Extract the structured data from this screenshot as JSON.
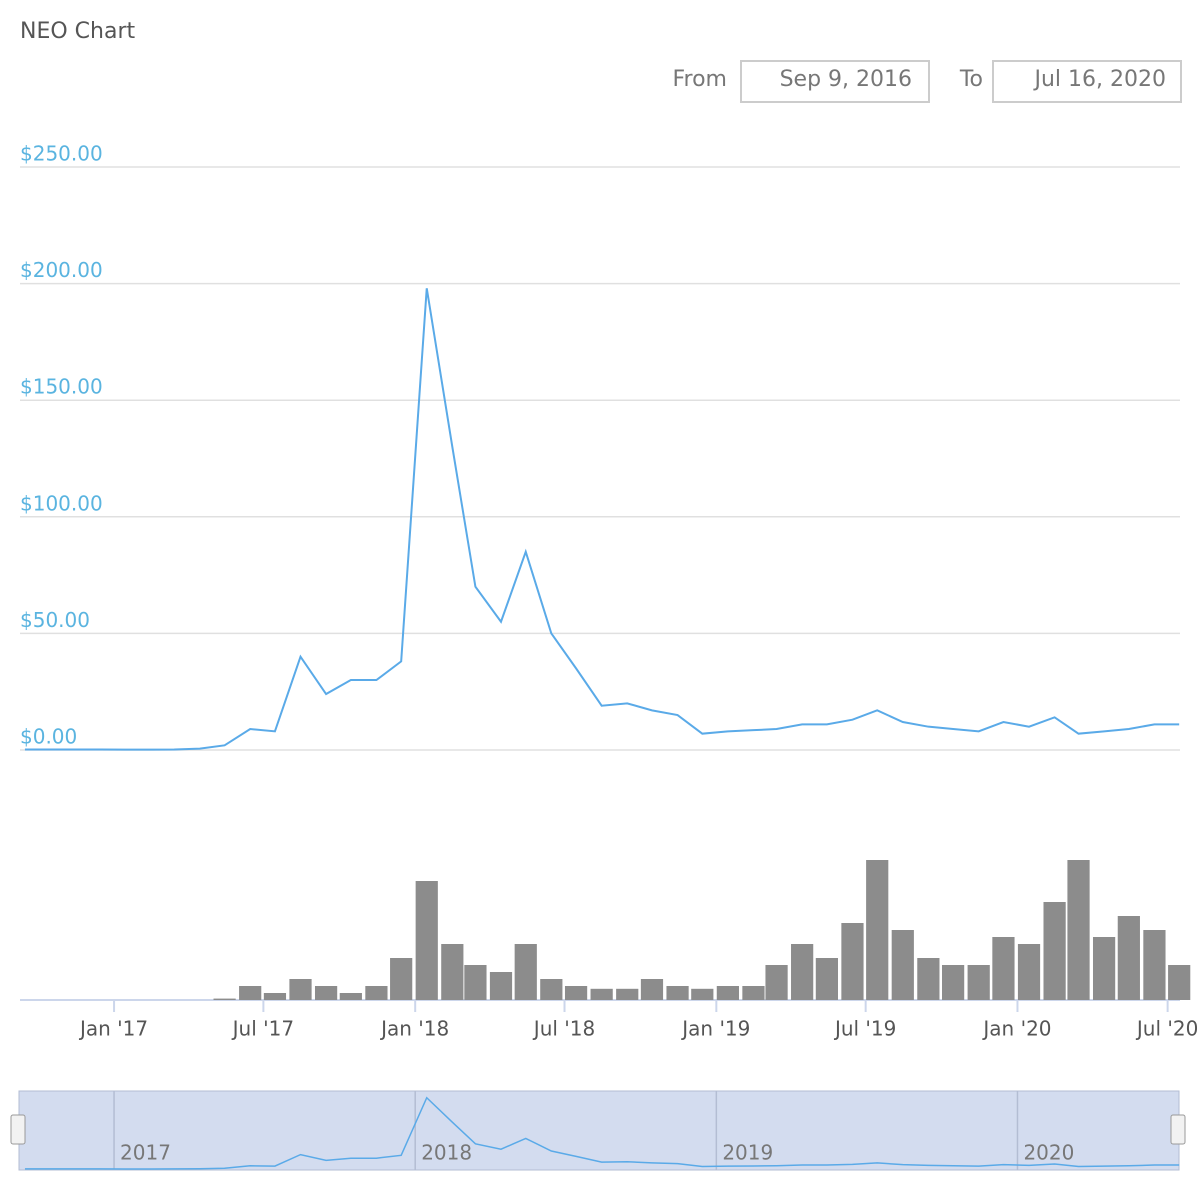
{
  "chart_data": {
    "type": "line",
    "title": "NEO Chart",
    "range": {
      "from_label": "From",
      "from": "Sep 9, 2016",
      "to_label": "To",
      "to": "Jul 16, 2020"
    },
    "x": [
      "2016-09",
      "2016-10",
      "2016-11",
      "2016-12",
      "2017-01",
      "2017-02",
      "2017-03",
      "2017-04",
      "2017-05",
      "2017-06",
      "2017-07",
      "2017-08",
      "2017-09",
      "2017-10",
      "2017-11",
      "2017-12",
      "2018-01",
      "2018-02",
      "2018-03",
      "2018-04",
      "2018-05",
      "2018-06",
      "2018-07",
      "2018-08",
      "2018-09",
      "2018-10",
      "2018-11",
      "2018-12",
      "2019-01",
      "2019-02",
      "2019-03",
      "2019-04",
      "2019-05",
      "2019-06",
      "2019-07",
      "2019-08",
      "2019-09",
      "2019-10",
      "2019-11",
      "2019-12",
      "2020-01",
      "2020-02",
      "2020-03",
      "2020-04",
      "2020-05",
      "2020-06",
      "2020-07"
    ],
    "values": [
      0.2,
      0.2,
      0.2,
      0.2,
      0.15,
      0.15,
      0.2,
      0.6,
      2,
      9,
      8,
      40,
      24,
      30,
      30,
      38,
      198,
      130,
      70,
      55,
      85,
      50,
      35,
      19,
      20,
      17,
      15,
      7,
      8,
      8.5,
      9,
      11,
      11,
      13,
      17,
      12,
      10,
      9,
      8,
      12,
      10,
      14,
      7,
      8,
      9,
      11,
      11
    ],
    "color": "#5aaae8",
    "volume_values": [
      0,
      0,
      0,
      0,
      0,
      0,
      0,
      0,
      1,
      10,
      5,
      15,
      10,
      5,
      10,
      30,
      85,
      40,
      25,
      20,
      40,
      15,
      10,
      8,
      8,
      15,
      10,
      8,
      10,
      10,
      25,
      40,
      30,
      55,
      100,
      50,
      30,
      25,
      25,
      45,
      40,
      70,
      100,
      45,
      60,
      50,
      25
    ],
    "volume_color": "#8c8c8c",
    "xlim": [
      "2016-09-09",
      "2020-07-16"
    ],
    "xticks": [
      {
        "value": "2017-01",
        "label": "Jan '17"
      },
      {
        "value": "2017-07",
        "label": "Jul '17"
      },
      {
        "value": "2018-01",
        "label": "Jan '18"
      },
      {
        "value": "2018-07",
        "label": "Jul '18"
      },
      {
        "value": "2019-01",
        "label": "Jan '19"
      },
      {
        "value": "2019-07",
        "label": "Jul '19"
      },
      {
        "value": "2020-01",
        "label": "Jan '20"
      },
      {
        "value": "2020-07",
        "label": "Jul '20"
      }
    ],
    "ylim": [
      0,
      250
    ],
    "yticks": [
      {
        "value": 0,
        "label": "$0.00"
      },
      {
        "value": 50,
        "label": "$50.00"
      },
      {
        "value": 100,
        "label": "$100.00"
      },
      {
        "value": 150,
        "label": "$150.00"
      },
      {
        "value": 200,
        "label": "$200.00"
      },
      {
        "value": 250,
        "label": "$250.00"
      }
    ],
    "grid": true,
    "navigator_ticks": [
      {
        "value": "2017-01",
        "label": "2017"
      },
      {
        "value": "2018-01",
        "label": "2018"
      },
      {
        "value": "2019-01",
        "label": "2019"
      },
      {
        "value": "2020-01",
        "label": "2020"
      }
    ]
  }
}
